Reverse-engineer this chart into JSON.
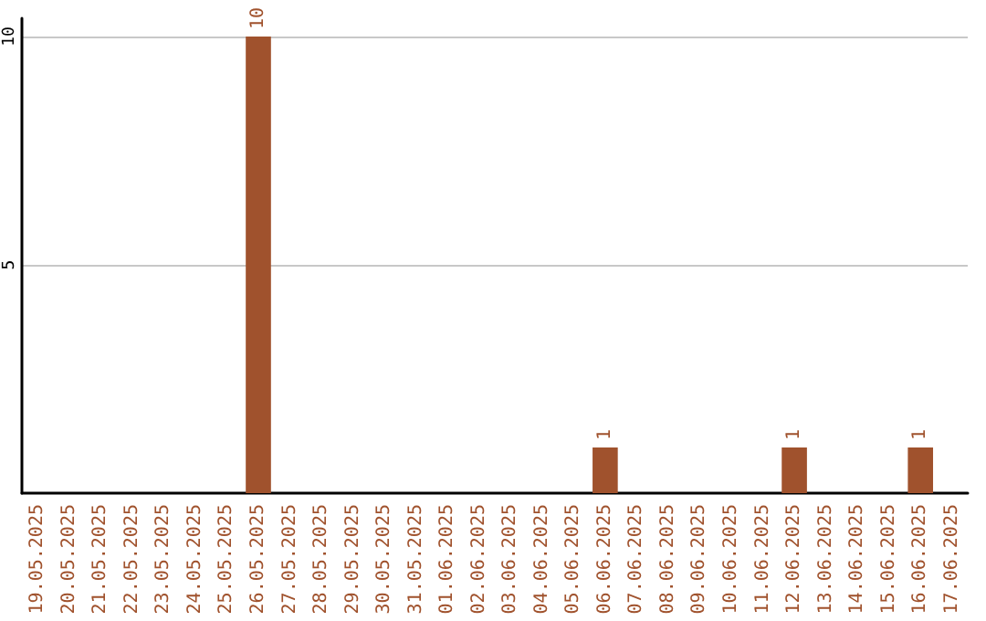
{
  "chart_data": {
    "type": "bar",
    "categories": [
      "19.05.2025",
      "20.05.2025",
      "21.05.2025",
      "22.05.2025",
      "23.05.2025",
      "24.05.2025",
      "25.05.2025",
      "26.05.2025",
      "27.05.2025",
      "28.05.2025",
      "29.05.2025",
      "30.05.2025",
      "31.05.2025",
      "01.06.2025",
      "02.06.2025",
      "03.06.2025",
      "04.06.2025",
      "05.06.2025",
      "06.06.2025",
      "07.06.2025",
      "08.06.2025",
      "09.06.2025",
      "10.06.2025",
      "11.06.2025",
      "12.06.2025",
      "13.06.2025",
      "14.06.2025",
      "15.06.2025",
      "16.06.2025",
      "17.06.2025"
    ],
    "values": [
      0,
      0,
      0,
      0,
      0,
      0,
      0,
      10,
      0,
      0,
      0,
      0,
      0,
      0,
      0,
      0,
      0,
      0,
      1,
      0,
      0,
      0,
      0,
      0,
      1,
      0,
      0,
      0,
      1,
      0
    ],
    "value_labels": [
      null,
      null,
      null,
      null,
      null,
      null,
      null,
      "10",
      null,
      null,
      null,
      null,
      null,
      null,
      null,
      null,
      null,
      null,
      "1",
      null,
      null,
      null,
      null,
      null,
      "1",
      null,
      null,
      null,
      "1",
      null
    ],
    "color": "#a0522d",
    "ylim": [
      0,
      10.4
    ],
    "yticks": [
      5,
      10
    ],
    "grid": "y"
  }
}
